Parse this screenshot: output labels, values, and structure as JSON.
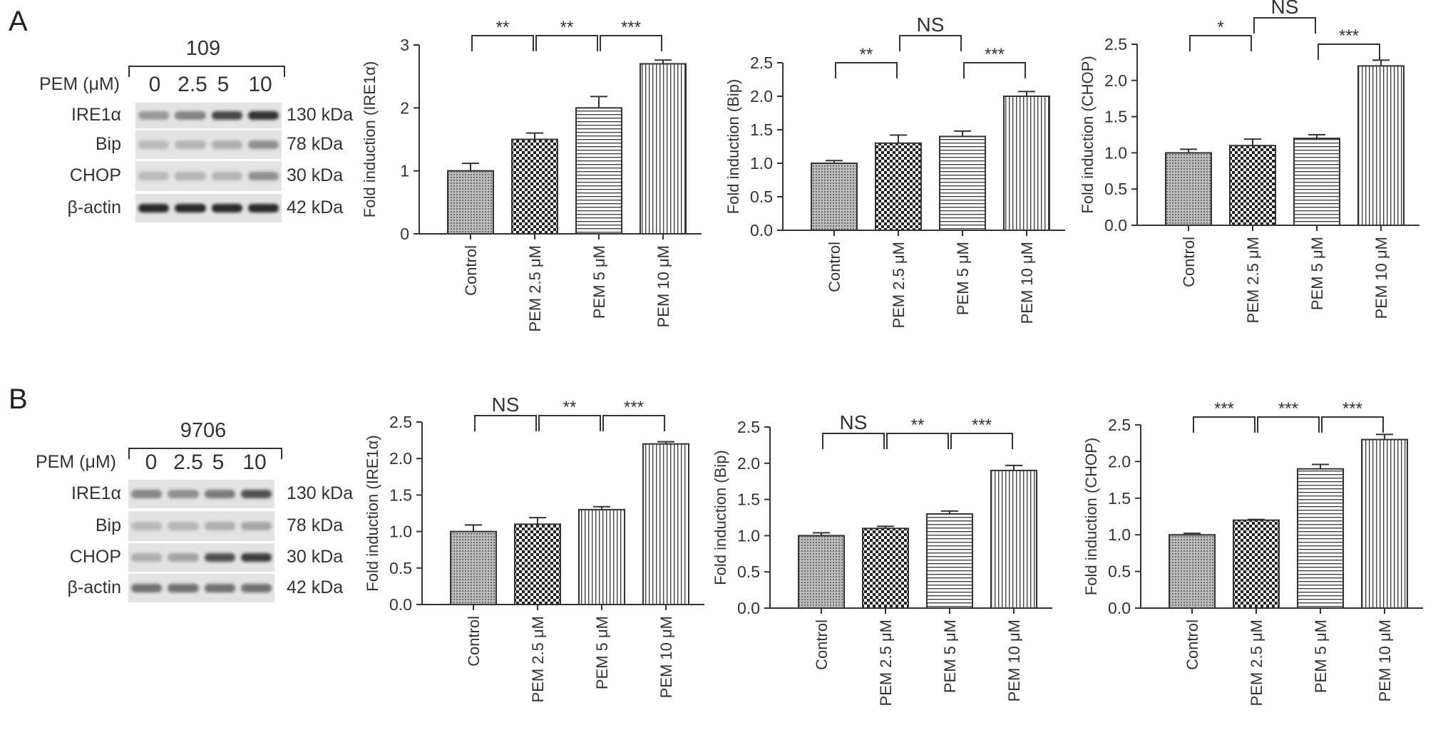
{
  "panels": [
    {
      "label": "A",
      "blot": {
        "cell_line": "109",
        "treatment_label": "PEM (μM)",
        "doses": [
          "0",
          "2.5",
          "5",
          "10"
        ],
        "rows": [
          {
            "protein": "IRE1α",
            "kda": "130 kDa",
            "intensity": [
              0.35,
              0.45,
              0.75,
              0.85
            ]
          },
          {
            "protein": "Bip",
            "kda": "78 kDa",
            "intensity": [
              0.2,
              0.22,
              0.25,
              0.4
            ]
          },
          {
            "protein": "CHOP",
            "kda": "30 kDa",
            "intensity": [
              0.2,
              0.22,
              0.22,
              0.4
            ]
          },
          {
            "protein": "β-actin",
            "kda": "42 kDa",
            "intensity": [
              0.9,
              0.9,
              0.9,
              0.9
            ]
          }
        ]
      }
    },
    {
      "label": "B",
      "blot": {
        "cell_line": "9706",
        "treatment_label": "PEM (μM)",
        "doses": [
          "0",
          "2.5",
          "5",
          "10"
        ],
        "rows": [
          {
            "protein": "IRE1α",
            "kda": "130 kDa",
            "intensity": [
              0.45,
              0.4,
              0.5,
              0.7
            ]
          },
          {
            "protein": "Bip",
            "kda": "78 kDa",
            "intensity": [
              0.2,
              0.22,
              0.25,
              0.3
            ]
          },
          {
            "protein": "CHOP",
            "kda": "30 kDa",
            "intensity": [
              0.25,
              0.3,
              0.7,
              0.8
            ]
          },
          {
            "protein": "β-actin",
            "kda": "42 kDa",
            "intensity": [
              0.55,
              0.55,
              0.55,
              0.55
            ]
          }
        ]
      }
    }
  ],
  "chart_data": [
    {
      "type": "bar",
      "ylabel": "Fold induction (IRE1α)",
      "categories": [
        "Control",
        "PEM 2.5 μM",
        "PEM 5 μM",
        "PEM 10 μM"
      ],
      "values": [
        1.0,
        1.5,
        2.0,
        2.7
      ],
      "errors": [
        0.12,
        0.1,
        0.18,
        0.06
      ],
      "ylim": [
        0,
        3
      ],
      "yticks": [
        "0",
        "1",
        "2",
        "3"
      ],
      "significance": [
        "**",
        "**",
        "***"
      ],
      "patterns": [
        "dots",
        "checker",
        "hlines",
        "vlines"
      ]
    },
    {
      "type": "bar",
      "ylabel": "Fold induction (Bip)",
      "categories": [
        "Control",
        "PEM 2.5 μM",
        "PEM 5 μM",
        "PEM 10 μM"
      ],
      "values": [
        1.0,
        1.3,
        1.4,
        2.0
      ],
      "errors": [
        0.04,
        0.12,
        0.08,
        0.07
      ],
      "ylim": [
        0,
        2.5
      ],
      "yticks": [
        "0.0",
        "0.5",
        "1.0",
        "1.5",
        "2.0",
        "2.5"
      ],
      "significance": [
        "**",
        "NS",
        "***"
      ],
      "patterns": [
        "dots",
        "checker",
        "hlines",
        "vlines"
      ]
    },
    {
      "type": "bar",
      "ylabel": "Fold induction (CHOP)",
      "categories": [
        "Control",
        "PEM 2.5 μM",
        "PEM 5 μM",
        "PEM 10 μM"
      ],
      "values": [
        1.0,
        1.1,
        1.2,
        2.2
      ],
      "errors": [
        0.05,
        0.09,
        0.05,
        0.08
      ],
      "ylim": [
        0,
        2.5
      ],
      "yticks": [
        "0.0",
        "0.5",
        "1.0",
        "1.5",
        "2.0",
        "2.5"
      ],
      "significance": [
        "*",
        "NS",
        "***"
      ],
      "patterns": [
        "dots",
        "checker",
        "hlines",
        "vlines"
      ]
    },
    {
      "type": "bar",
      "ylabel": "Fold induction (IRE1α)",
      "categories": [
        "Control",
        "PEM 2.5 μM",
        "PEM 5 μM",
        "PEM 10 μM"
      ],
      "values": [
        1.0,
        1.1,
        1.3,
        2.2
      ],
      "errors": [
        0.09,
        0.09,
        0.04,
        0.03
      ],
      "ylim": [
        0,
        2.5
      ],
      "yticks": [
        "0.0",
        "0.5",
        "1.0",
        "1.5",
        "2.0",
        "2.5"
      ],
      "significance": [
        "NS",
        "**",
        "***"
      ],
      "patterns": [
        "dots",
        "checker",
        "vlines",
        "vlines"
      ]
    },
    {
      "type": "bar",
      "ylabel": "Fold induction (Bip)",
      "categories": [
        "Control",
        "PEM 2.5 μM",
        "PEM 5 μM",
        "PEM 10 μM"
      ],
      "values": [
        1.0,
        1.1,
        1.3,
        1.9
      ],
      "errors": [
        0.04,
        0.03,
        0.04,
        0.07
      ],
      "ylim": [
        0,
        2.5
      ],
      "yticks": [
        "0.0",
        "0.5",
        "1.0",
        "1.5",
        "2.0",
        "2.5"
      ],
      "significance": [
        "NS",
        "**",
        "***"
      ],
      "patterns": [
        "dots",
        "checker",
        "hlines",
        "vlines"
      ]
    },
    {
      "type": "bar",
      "ylabel": "Fold induction (CHOP)",
      "categories": [
        "Control",
        "PEM 2.5 μM",
        "PEM 5 μM",
        "PEM 10 μM"
      ],
      "values": [
        1.0,
        1.2,
        1.9,
        2.3
      ],
      "errors": [
        0.02,
        0.01,
        0.06,
        0.07
      ],
      "ylim": [
        0,
        2.5
      ],
      "yticks": [
        "0.0",
        "0.5",
        "1.0",
        "1.5",
        "2.0",
        "2.5"
      ],
      "significance": [
        "***",
        "***",
        "***"
      ],
      "patterns": [
        "dots",
        "checker",
        "hlines",
        "vlines"
      ]
    }
  ]
}
